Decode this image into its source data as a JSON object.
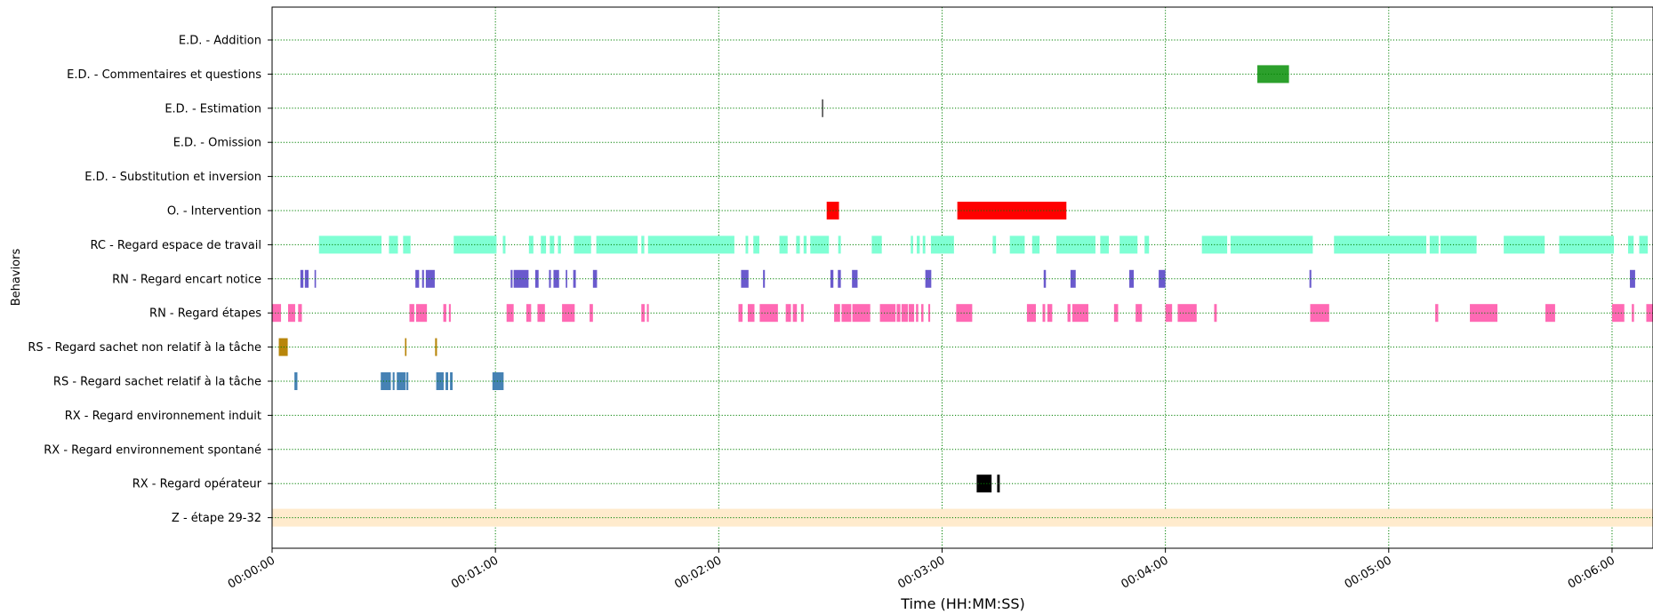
{
  "chart_data": {
    "type": "timeline",
    "title": "",
    "xlabel": "Time (HH:MM:SS)",
    "ylabel": "Behaviors",
    "xlim": [
      0,
      371
    ],
    "grid": true,
    "x_ticks": [
      {
        "value": 0,
        "label": "00:00:00"
      },
      {
        "value": 60,
        "label": "00:01:00"
      },
      {
        "value": 120,
        "label": "00:02:00"
      },
      {
        "value": 180,
        "label": "00:03:00"
      },
      {
        "value": 240,
        "label": "00:04:00"
      },
      {
        "value": 300,
        "label": "00:05:00"
      },
      {
        "value": 360,
        "label": "00:06:00"
      }
    ],
    "behaviors": [
      {
        "name": "E.D. - Addition",
        "color": "#1f77b4",
        "intervals": []
      },
      {
        "name": "E.D. - Commentaires et questions",
        "color": "#2ca02c",
        "intervals": [
          [
            264.7,
            273.2
          ]
        ]
      },
      {
        "name": "E.D. - Estimation",
        "color": "#555555",
        "intervals": [
          [
            147.7,
            148.1
          ]
        ]
      },
      {
        "name": "E.D. - Omission",
        "color": "#8c564b",
        "intervals": []
      },
      {
        "name": "E.D. - Substitution et inversion",
        "color": "#e377c2",
        "intervals": []
      },
      {
        "name": "O. - Intervention",
        "color": "#ff0000",
        "intervals": [
          [
            149.0,
            152.3
          ],
          [
            184.1,
            213.4
          ]
        ]
      },
      {
        "name": "RC - Regard espace de travail",
        "color": "#7fffd4",
        "intervals": [
          [
            12.6,
            29.4
          ],
          [
            31.4,
            33.8
          ],
          [
            35.2,
            37.2
          ],
          [
            48.8,
            60.3
          ],
          [
            62.0,
            62.7
          ],
          [
            69.0,
            70.2
          ],
          [
            72.2,
            73.6
          ],
          [
            74.6,
            75.8
          ],
          [
            76.8,
            77.6
          ],
          [
            81.1,
            85.7
          ],
          [
            87.1,
            98.2
          ],
          [
            99.2,
            100.0
          ],
          [
            101.0,
            124.2
          ],
          [
            127.2,
            127.9
          ],
          [
            129.3,
            130.9
          ],
          [
            136.3,
            138.5
          ],
          [
            140.8,
            141.8
          ],
          [
            142.8,
            143.6
          ],
          [
            144.6,
            149.6
          ],
          [
            152.1,
            152.8
          ],
          [
            161.1,
            163.8
          ],
          [
            171.6,
            172.2
          ],
          [
            173.2,
            174.0
          ],
          [
            174.8,
            175.5
          ],
          [
            177.0,
            183.2
          ],
          [
            193.6,
            194.5
          ],
          [
            198.2,
            202.2
          ],
          [
            204.2,
            206.2
          ],
          [
            210.7,
            221.2
          ],
          [
            222.5,
            224.8
          ],
          [
            227.7,
            232.5
          ],
          [
            234.4,
            235.6
          ],
          [
            249.8,
            256.6
          ],
          [
            257.5,
            279.6
          ],
          [
            285.3,
            310.1
          ],
          [
            311.0,
            313.4
          ],
          [
            313.9,
            323.6
          ],
          [
            330.9,
            341.9
          ],
          [
            345.8,
            360.5
          ],
          [
            364.3,
            365.8
          ],
          [
            367.3,
            369.6
          ]
        ]
      },
      {
        "name": "RN - Regard encart notice",
        "color": "#6a5acd",
        "intervals": [
          [
            7.6,
            8.4
          ],
          [
            8.8,
            9.8
          ],
          [
            11.4,
            11.8
          ],
          [
            38.5,
            39.5
          ],
          [
            40.3,
            40.8
          ],
          [
            41.3,
            43.7
          ],
          [
            64.1,
            64.6
          ],
          [
            64.9,
            68.9
          ],
          [
            70.7,
            71.6
          ],
          [
            74.4,
            74.9
          ],
          [
            75.6,
            77.1
          ],
          [
            78.9,
            79.3
          ],
          [
            80.9,
            81.6
          ],
          [
            86.2,
            87.3
          ],
          [
            126.0,
            128.0
          ],
          [
            131.9,
            132.4
          ],
          [
            150.0,
            150.8
          ],
          [
            152.0,
            152.8
          ],
          [
            155.8,
            157.3
          ],
          [
            175.5,
            177.1
          ],
          [
            207.3,
            207.9
          ],
          [
            214.5,
            215.9
          ],
          [
            230.3,
            231.5
          ],
          [
            238.2,
            240.0
          ],
          [
            278.7,
            279.2
          ],
          [
            364.8,
            366.2
          ]
        ]
      },
      {
        "name": "RN - Regard étapes",
        "color": "#ff69b4",
        "intervals": [
          [
            0.0,
            2.4
          ],
          [
            4.3,
            6.2
          ],
          [
            7.0,
            8.0
          ],
          [
            36.9,
            38.2
          ],
          [
            38.7,
            41.6
          ],
          [
            46.0,
            46.8
          ],
          [
            47.5,
            48.0
          ],
          [
            63.0,
            64.9
          ],
          [
            68.3,
            69.6
          ],
          [
            71.3,
            73.3
          ],
          [
            77.9,
            81.3
          ],
          [
            85.3,
            86.2
          ],
          [
            99.2,
            100.1
          ],
          [
            100.7,
            101.2
          ],
          [
            125.3,
            126.4
          ],
          [
            127.8,
            129.6
          ],
          [
            131.0,
            135.9
          ],
          [
            138.0,
            139.4
          ],
          [
            139.9,
            141.0
          ],
          [
            142.1,
            142.8
          ],
          [
            151.0,
            152.6
          ],
          [
            153.0,
            155.6
          ],
          [
            155.9,
            160.7
          ],
          [
            163.3,
            167.5
          ],
          [
            167.8,
            168.8
          ],
          [
            169.1,
            170.8
          ],
          [
            171.0,
            172.5
          ],
          [
            173.0,
            173.6
          ],
          [
            174.4,
            175.0
          ],
          [
            176.3,
            176.8
          ],
          [
            183.8,
            188.1
          ],
          [
            202.8,
            205.2
          ],
          [
            207.0,
            207.7
          ],
          [
            208.3,
            209.6
          ],
          [
            213.7,
            214.5
          ],
          [
            215.0,
            219.3
          ],
          [
            226.2,
            227.3
          ],
          [
            232.0,
            233.7
          ],
          [
            240.0,
            241.8
          ],
          [
            243.3,
            248.4
          ],
          [
            253.1,
            253.8
          ],
          [
            278.9,
            284.0
          ],
          [
            312.5,
            313.3
          ],
          [
            321.8,
            329.2
          ],
          [
            342.1,
            344.7
          ],
          [
            360.0,
            363.3
          ],
          [
            365.3,
            365.9
          ],
          [
            369.2,
            371.0
          ]
        ]
      },
      {
        "name": "RS - Regard sachet non relatif à la tâche",
        "color": "#b8860b",
        "intervals": [
          [
            1.8,
            4.2
          ],
          [
            35.7,
            36.1
          ],
          [
            43.8,
            44.3
          ]
        ]
      },
      {
        "name": "RS - Regard sachet relatif à la tâche",
        "color": "#4682b4",
        "intervals": [
          [
            6.0,
            6.8
          ],
          [
            29.2,
            31.9
          ],
          [
            32.4,
            32.9
          ],
          [
            33.5,
            35.9
          ],
          [
            36.1,
            36.6
          ],
          [
            44.1,
            46.1
          ],
          [
            46.6,
            47.3
          ],
          [
            47.8,
            48.5
          ],
          [
            59.2,
            62.2
          ]
        ]
      },
      {
        "name": "RX - Regard environnement induit",
        "color": "#9467bd",
        "intervals": []
      },
      {
        "name": "RX - Regard environnement spontané",
        "color": "#17becf",
        "intervals": []
      },
      {
        "name": "RX - Regard opérateur",
        "color": "#000000",
        "intervals": [
          [
            189.3,
            193.3
          ],
          [
            194.8,
            195.5
          ]
        ]
      },
      {
        "name": "Z - étape 29-32",
        "color": "#ffebcd",
        "intervals": [
          [
            0.0,
            371.0
          ]
        ]
      }
    ]
  }
}
